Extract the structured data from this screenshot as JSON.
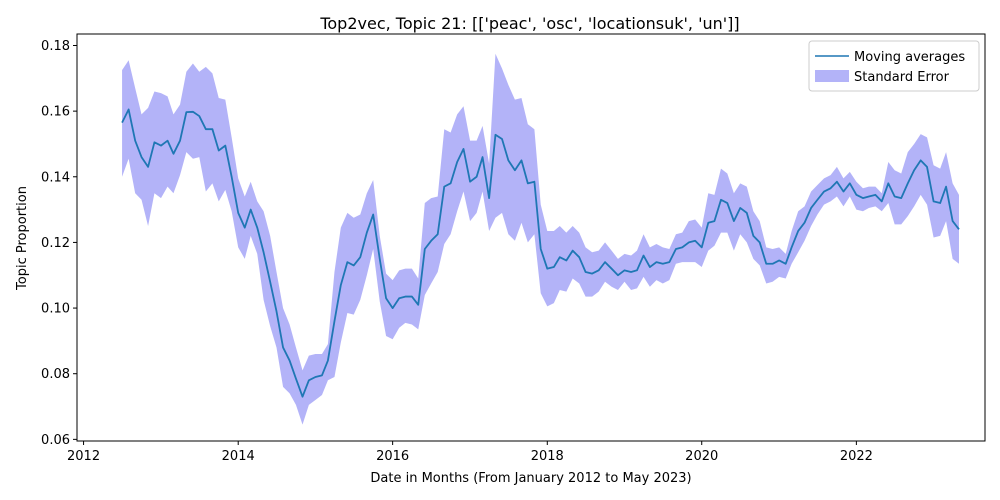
{
  "chart_data": {
    "type": "line",
    "title": "Top2vec, Topic 21: [['peac', 'osc', 'locationsuk', 'un']]",
    "xlabel": "Date in Months (From January 2012 to May 2023)",
    "ylabel": "Topic Proportion",
    "xlim": [
      "2011-12-01",
      "2023-09-01"
    ],
    "ylim": [
      0.0595,
      0.1835
    ],
    "x_ticks": [
      "2012-01-01",
      "2014-01-01",
      "2016-01-01",
      "2018-01-01",
      "2020-01-01",
      "2022-01-01"
    ],
    "x_tick_labels": [
      "2012",
      "2014",
      "2016",
      "2018",
      "2020",
      "2022"
    ],
    "y_ticks": [
      0.06,
      0.08,
      0.1,
      0.12,
      0.14,
      0.16,
      0.18
    ],
    "y_tick_labels": [
      "0.06",
      "0.08",
      "0.10",
      "0.12",
      "0.14",
      "0.16",
      "0.18"
    ],
    "grid": false,
    "legend": {
      "placement": "top-right",
      "entries": [
        "Moving averages",
        "Standard Error"
      ]
    },
    "colors": {
      "line": "#1f77b4",
      "band": "#8f8ff5"
    },
    "series": [
      {
        "name": "Moving averages",
        "kind": "line",
        "points": [
          [
            "2012-07-01",
            0.1565
          ],
          [
            "2012-08-01",
            0.1605
          ],
          [
            "2012-09-01",
            0.151
          ],
          [
            "2012-10-01",
            0.146
          ],
          [
            "2012-11-01",
            0.143
          ],
          [
            "2012-12-01",
            0.1505
          ],
          [
            "2013-01-01",
            0.1495
          ],
          [
            "2013-02-01",
            0.151
          ],
          [
            "2013-03-01",
            0.147
          ],
          [
            "2013-04-01",
            0.151
          ],
          [
            "2013-05-01",
            0.1597
          ],
          [
            "2013-06-01",
            0.1598
          ],
          [
            "2013-07-01",
            0.1585
          ],
          [
            "2013-08-01",
            0.1545
          ],
          [
            "2013-09-01",
            0.1545
          ],
          [
            "2013-10-01",
            0.148
          ],
          [
            "2013-11-01",
            0.1495
          ],
          [
            "2013-12-01",
            0.14
          ],
          [
            "2014-01-01",
            0.129
          ],
          [
            "2014-02-01",
            0.1245
          ],
          [
            "2014-03-01",
            0.13
          ],
          [
            "2014-04-01",
            0.1245
          ],
          [
            "2014-05-01",
            0.117
          ],
          [
            "2014-06-01",
            0.108
          ],
          [
            "2014-07-01",
            0.099
          ],
          [
            "2014-08-01",
            0.088
          ],
          [
            "2014-09-01",
            0.084
          ],
          [
            "2014-10-01",
            0.0785
          ],
          [
            "2014-11-01",
            0.073
          ],
          [
            "2014-12-01",
            0.078
          ],
          [
            "2015-01-01",
            0.079
          ],
          [
            "2015-02-01",
            0.0795
          ],
          [
            "2015-03-01",
            0.084
          ],
          [
            "2015-04-01",
            0.096
          ],
          [
            "2015-05-01",
            0.107
          ],
          [
            "2015-06-01",
            0.114
          ],
          [
            "2015-07-01",
            0.113
          ],
          [
            "2015-08-01",
            0.1155
          ],
          [
            "2015-09-01",
            0.123
          ],
          [
            "2015-10-01",
            0.1285
          ],
          [
            "2015-11-01",
            0.115
          ],
          [
            "2015-12-01",
            0.103
          ],
          [
            "2016-01-01",
            0.1
          ],
          [
            "2016-02-01",
            0.103
          ],
          [
            "2016-03-01",
            0.1035
          ],
          [
            "2016-04-01",
            0.1035
          ],
          [
            "2016-05-01",
            0.101
          ],
          [
            "2016-06-01",
            0.118
          ],
          [
            "2016-07-01",
            0.1205
          ],
          [
            "2016-08-01",
            0.1225
          ],
          [
            "2016-09-01",
            0.137
          ],
          [
            "2016-10-01",
            0.138
          ],
          [
            "2016-11-01",
            0.1445
          ],
          [
            "2016-12-01",
            0.1485
          ],
          [
            "2017-01-01",
            0.1385
          ],
          [
            "2017-02-01",
            0.14
          ],
          [
            "2017-03-01",
            0.146
          ],
          [
            "2017-04-01",
            0.1335
          ],
          [
            "2017-05-01",
            0.1528
          ],
          [
            "2017-06-01",
            0.1515
          ],
          [
            "2017-07-01",
            0.145
          ],
          [
            "2017-08-01",
            0.142
          ],
          [
            "2017-09-01",
            0.145
          ],
          [
            "2017-10-01",
            0.138
          ],
          [
            "2017-11-01",
            0.1385
          ],
          [
            "2017-12-01",
            0.118
          ],
          [
            "2018-01-01",
            0.112
          ],
          [
            "2018-02-01",
            0.1125
          ],
          [
            "2018-03-01",
            0.1155
          ],
          [
            "2018-04-01",
            0.1145
          ],
          [
            "2018-05-01",
            0.1175
          ],
          [
            "2018-06-01",
            0.1155
          ],
          [
            "2018-07-01",
            0.111
          ],
          [
            "2018-08-01",
            0.1105
          ],
          [
            "2018-09-01",
            0.1115
          ],
          [
            "2018-10-01",
            0.114
          ],
          [
            "2018-11-01",
            0.112
          ],
          [
            "2018-12-01",
            0.11
          ],
          [
            "2019-01-01",
            0.1115
          ],
          [
            "2019-02-01",
            0.111
          ],
          [
            "2019-03-01",
            0.1115
          ],
          [
            "2019-04-01",
            0.116
          ],
          [
            "2019-05-01",
            0.1125
          ],
          [
            "2019-06-01",
            0.114
          ],
          [
            "2019-07-01",
            0.1135
          ],
          [
            "2019-08-01",
            0.114
          ],
          [
            "2019-09-01",
            0.118
          ],
          [
            "2019-10-01",
            0.1185
          ],
          [
            "2019-11-01",
            0.12
          ],
          [
            "2019-12-01",
            0.1205
          ],
          [
            "2020-01-01",
            0.1185
          ],
          [
            "2020-02-01",
            0.126
          ],
          [
            "2020-03-01",
            0.1265
          ],
          [
            "2020-04-01",
            0.133
          ],
          [
            "2020-05-01",
            0.132
          ],
          [
            "2020-06-01",
            0.1265
          ],
          [
            "2020-07-01",
            0.1305
          ],
          [
            "2020-08-01",
            0.129
          ],
          [
            "2020-09-01",
            0.122
          ],
          [
            "2020-10-01",
            0.12
          ],
          [
            "2020-11-01",
            0.1135
          ],
          [
            "2020-12-01",
            0.1135
          ],
          [
            "2021-01-01",
            0.1145
          ],
          [
            "2021-02-01",
            0.1135
          ],
          [
            "2021-03-01",
            0.1185
          ],
          [
            "2021-04-01",
            0.1235
          ],
          [
            "2021-05-01",
            0.126
          ],
          [
            "2021-06-01",
            0.1305
          ],
          [
            "2021-07-01",
            0.133
          ],
          [
            "2021-08-01",
            0.1355
          ],
          [
            "2021-09-01",
            0.1365
          ],
          [
            "2021-10-01",
            0.1385
          ],
          [
            "2021-11-01",
            0.1355
          ],
          [
            "2021-12-01",
            0.138
          ],
          [
            "2022-01-01",
            0.1345
          ],
          [
            "2022-02-01",
            0.1335
          ],
          [
            "2022-03-01",
            0.134
          ],
          [
            "2022-04-01",
            0.1345
          ],
          [
            "2022-05-01",
            0.1325
          ],
          [
            "2022-06-01",
            0.138
          ],
          [
            "2022-07-01",
            0.134
          ],
          [
            "2022-08-01",
            0.1335
          ],
          [
            "2022-09-01",
            0.138
          ],
          [
            "2022-10-01",
            0.142
          ],
          [
            "2022-11-01",
            0.145
          ],
          [
            "2022-12-01",
            0.143
          ],
          [
            "2023-01-01",
            0.1325
          ],
          [
            "2023-02-01",
            0.132
          ],
          [
            "2023-03-01",
            0.137
          ],
          [
            "2023-04-01",
            0.1265
          ],
          [
            "2023-05-01",
            0.124
          ]
        ]
      },
      {
        "name": "Standard Error",
        "kind": "band",
        "upper": [
          0.1725,
          0.1755,
          0.167,
          0.159,
          0.161,
          0.166,
          0.1655,
          0.1645,
          0.159,
          0.162,
          0.172,
          0.1745,
          0.172,
          0.1735,
          0.1715,
          0.164,
          0.1635,
          0.152,
          0.1395,
          0.134,
          0.1385,
          0.1325,
          0.1295,
          0.122,
          0.111,
          0.1,
          0.095,
          0.088,
          0.081,
          0.0855,
          0.086,
          0.086,
          0.089,
          0.111,
          0.1245,
          0.129,
          0.1275,
          0.1285,
          0.135,
          0.139,
          0.122,
          0.1105,
          0.1085,
          0.1115,
          0.112,
          0.112,
          0.109,
          0.132,
          0.1335,
          0.134,
          0.1545,
          0.1535,
          0.159,
          0.1615,
          0.151,
          0.151,
          0.1555,
          0.144,
          0.1775,
          0.173,
          0.168,
          0.1635,
          0.164,
          0.156,
          0.1545,
          0.1315,
          0.1235,
          0.1235,
          0.125,
          0.123,
          0.125,
          0.123,
          0.1185,
          0.117,
          0.1175,
          0.12,
          0.1175,
          0.115,
          0.1165,
          0.116,
          0.1175,
          0.1225,
          0.1185,
          0.1195,
          0.1185,
          0.118,
          0.1225,
          0.123,
          0.1265,
          0.127,
          0.1245,
          0.135,
          0.1345,
          0.1425,
          0.141,
          0.135,
          0.138,
          0.137,
          0.1295,
          0.1265,
          0.1185,
          0.118,
          0.1185,
          0.1165,
          0.1235,
          0.1295,
          0.131,
          0.1355,
          0.1375,
          0.1395,
          0.1405,
          0.143,
          0.1395,
          0.1415,
          0.1385,
          0.1365,
          0.137,
          0.137,
          0.135,
          0.1445,
          0.142,
          0.141,
          0.1475,
          0.15,
          0.153,
          0.152,
          0.1435,
          0.1425,
          0.1475,
          0.138,
          0.1345
        ],
        "lower": [
          0.14,
          0.1455,
          0.135,
          0.133,
          0.125,
          0.135,
          0.1335,
          0.137,
          0.135,
          0.1405,
          0.1475,
          0.1455,
          0.146,
          0.1355,
          0.138,
          0.1325,
          0.136,
          0.1295,
          0.1185,
          0.115,
          0.122,
          0.1165,
          0.1025,
          0.0945,
          0.088,
          0.076,
          0.074,
          0.0705,
          0.0645,
          0.0705,
          0.072,
          0.0735,
          0.078,
          0.079,
          0.0895,
          0.0985,
          0.098,
          0.1025,
          0.11,
          0.118,
          0.102,
          0.0915,
          0.0905,
          0.094,
          0.0955,
          0.095,
          0.0935,
          0.104,
          0.1075,
          0.111,
          0.1195,
          0.1225,
          0.1295,
          0.1355,
          0.1265,
          0.129,
          0.1355,
          0.1235,
          0.1275,
          0.129,
          0.1225,
          0.1205,
          0.126,
          0.12,
          0.1225,
          0.1045,
          0.1005,
          0.1015,
          0.1055,
          0.105,
          0.109,
          0.1075,
          0.1035,
          0.1035,
          0.105,
          0.108,
          0.1065,
          0.1055,
          0.108,
          0.1055,
          0.106,
          0.1095,
          0.1065,
          0.1085,
          0.1075,
          0.1085,
          0.1135,
          0.114,
          0.114,
          0.114,
          0.1125,
          0.1175,
          0.119,
          0.123,
          0.123,
          0.1175,
          0.1225,
          0.12,
          0.115,
          0.113,
          0.1075,
          0.108,
          0.1095,
          0.109,
          0.1135,
          0.117,
          0.1205,
          0.125,
          0.1285,
          0.1315,
          0.1325,
          0.134,
          0.131,
          0.134,
          0.13,
          0.1295,
          0.1305,
          0.131,
          0.1295,
          0.132,
          0.1255,
          0.1255,
          0.128,
          0.131,
          0.1345,
          0.1315,
          0.1215,
          0.122,
          0.1265,
          0.115,
          0.1135
        ]
      }
    ]
  }
}
